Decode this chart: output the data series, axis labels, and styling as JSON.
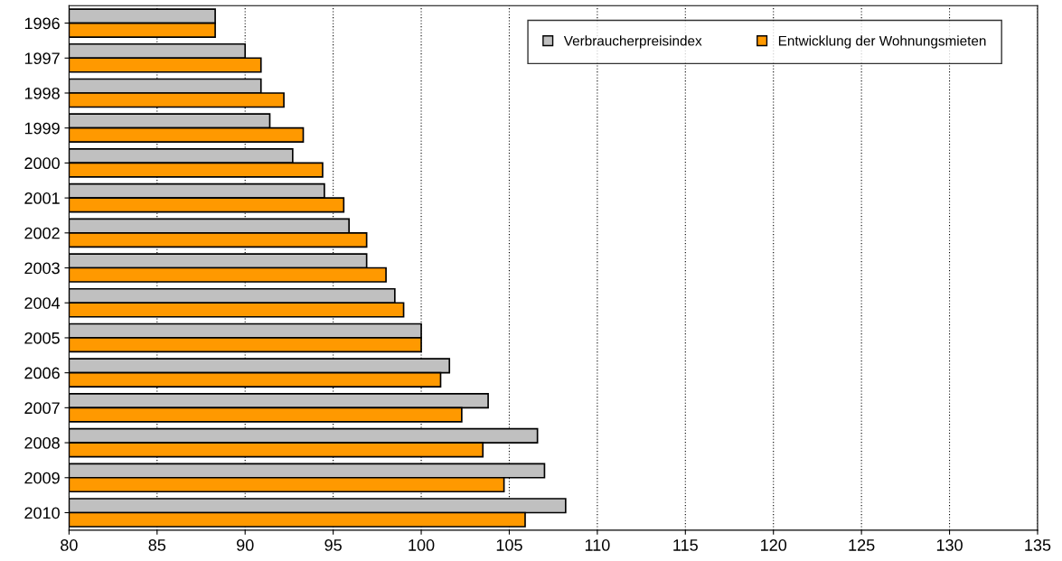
{
  "chart_data": {
    "type": "bar",
    "orientation": "horizontal",
    "categories": [
      "1996",
      "1997",
      "1998",
      "1999",
      "2000",
      "2001",
      "2002",
      "2003",
      "2004",
      "2005",
      "2006",
      "2007",
      "2008",
      "2009",
      "2010"
    ],
    "series": [
      {
        "name": "Verbraucherpreisindex",
        "color": "#c0c0c0",
        "values": [
          88.3,
          90.0,
          90.9,
          91.4,
          92.7,
          94.5,
          95.9,
          96.9,
          98.5,
          100.0,
          101.6,
          103.8,
          106.6,
          107.0,
          108.2
        ]
      },
      {
        "name": "Entwicklung der Wohnungsmieten",
        "color": "#ff9900",
        "values": [
          88.3,
          90.9,
          92.2,
          93.3,
          94.4,
          95.6,
          96.9,
          98.0,
          99.0,
          100.0,
          101.1,
          102.3,
          103.5,
          104.7,
          105.9
        ]
      }
    ],
    "xlim": [
      80,
      135
    ],
    "xticks": [
      80,
      85,
      90,
      95,
      100,
      105,
      110,
      115,
      120,
      125,
      130,
      135
    ],
    "grid": "x",
    "legend": "top right"
  }
}
